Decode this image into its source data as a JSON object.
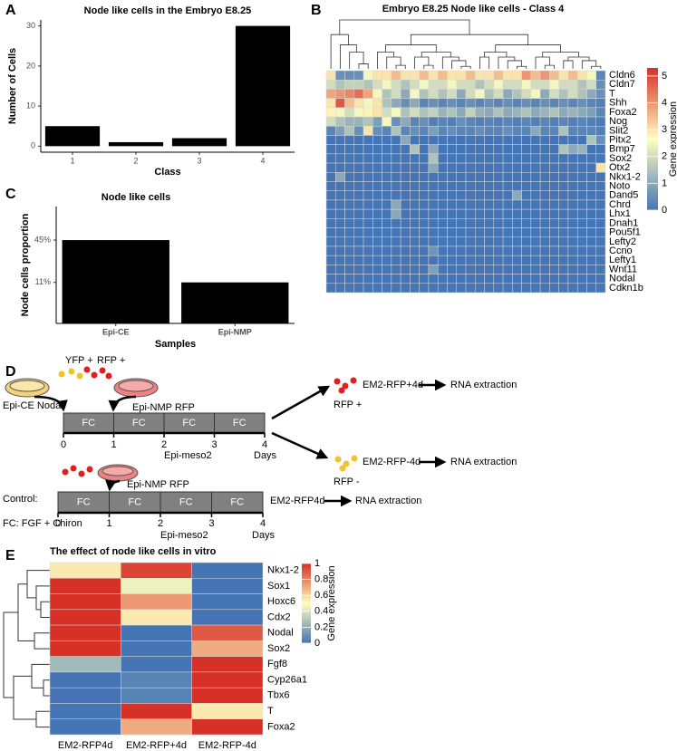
{
  "chart_data": [
    {
      "panel": "A",
      "type": "bar",
      "title": "Node like cells in the Embryo E8.25",
      "x_label": "Class",
      "y_label": "Number of Cells",
      "categories": [
        "1",
        "2",
        "3",
        "4"
      ],
      "values": [
        5,
        1,
        2,
        30
      ],
      "color": "#000000",
      "ylim": [
        -1.5,
        31.5
      ],
      "yticks": [
        0,
        10,
        20,
        30
      ]
    },
    {
      "panel": "B",
      "type": "heatmap",
      "title": "Embryo E8.25 Node like cells - Class 4",
      "colorbar_label": "Gene expression",
      "rows": [
        "Cldn6",
        "Cldn7",
        "T",
        "Shh",
        "Foxa2",
        "Nog",
        "Slit2",
        "Pitx2",
        "Bmp7",
        "Sox2",
        "Otx2",
        "Nkx1-2",
        "Noto",
        "Dand5",
        "Chrd",
        "Lhx1",
        "Dnah1",
        "Pou5f1",
        "Lefty2",
        "Ccno",
        "Lefty1",
        "Wnt11",
        "Nodal",
        "Cdkn1b"
      ],
      "values": [
        [
          3,
          0.5,
          0.5,
          0.5,
          2.5,
          3,
          3,
          3.5,
          3,
          3,
          3.5,
          3,
          3.5,
          3,
          3,
          3.5,
          3,
          3,
          3.5,
          3,
          3,
          4,
          3.5,
          4,
          3.5,
          3,
          3.5,
          3,
          2.5,
          0.3
        ],
        [
          2,
          1.5,
          1.8,
          1.8,
          1.5,
          2,
          2.5,
          2,
          1.5,
          2,
          2.5,
          2,
          2,
          2.5,
          2,
          2,
          1.5,
          2,
          2.5,
          2,
          2,
          2.5,
          2,
          2,
          2.5,
          2,
          2,
          1.5,
          2,
          0.5
        ],
        [
          3.8,
          4,
          4.2,
          4.5,
          3.8,
          2.5,
          1.5,
          2,
          1,
          2.5,
          1.5,
          2,
          1.5,
          2,
          1,
          2,
          2.5,
          1.5,
          2,
          1,
          1.5,
          2,
          2.5,
          1,
          2,
          1.5,
          2,
          1.5,
          1,
          0.5
        ],
        [
          3,
          4.8,
          3.5,
          3,
          2.5,
          3,
          1.5,
          1,
          0.5,
          1,
          0.3,
          0.5,
          0.3,
          0.5,
          0.3,
          0.5,
          0.3,
          0.5,
          0.3,
          0.5,
          0.3,
          0.5,
          0.3,
          0.5,
          0.3,
          0.5,
          0.3,
          0.5,
          0.3,
          0.2
        ],
        [
          2.8,
          2.5,
          2,
          2.5,
          2.8,
          3,
          2,
          2.5,
          1.5,
          2,
          1.5,
          1.8,
          1.2,
          1.5,
          1,
          1.8,
          1.2,
          1,
          1.5,
          1,
          1.2,
          1.5,
          1,
          1.2,
          1.5,
          1,
          1.2,
          1,
          0.8,
          0.3
        ],
        [
          2,
          1.5,
          1.2,
          1.2,
          1.5,
          0.8,
          2.5,
          0.5,
          1,
          0.3,
          0.5,
          0.2,
          0.3,
          0.2,
          0.5,
          0.3,
          0.2,
          0.3,
          0.2,
          0.3,
          0.2,
          0.3,
          0.2,
          0.3,
          0.2,
          0.3,
          0.2,
          0.3,
          0.2,
          0.1
        ],
        [
          0.3,
          0.8,
          1.5,
          0.5,
          3,
          0.5,
          0.3,
          1.5,
          0.3,
          0.5,
          0.3,
          0.8,
          0.3,
          0.5,
          0.3,
          0.3,
          0.5,
          0.3,
          0.3,
          0.5,
          0.3,
          0.3,
          1,
          0.3,
          0.3,
          1.5,
          0.3,
          0.3,
          0.3,
          0.2
        ],
        [
          0,
          0,
          0,
          0,
          0,
          0,
          0,
          0,
          1,
          0,
          0,
          0,
          0,
          0,
          0,
          0,
          0,
          0,
          0,
          0,
          0,
          0,
          0,
          0,
          0,
          0,
          0,
          0,
          1.5,
          0.5
        ],
        [
          0,
          0,
          0,
          0,
          0,
          0,
          0,
          0,
          0,
          1.5,
          0,
          1,
          0,
          0,
          0,
          0,
          0,
          0,
          0,
          0,
          0,
          0,
          0,
          0,
          0,
          1.5,
          1,
          1.2,
          0,
          0
        ],
        [
          0,
          0,
          0,
          0,
          0,
          0,
          0,
          0,
          0,
          0,
          0,
          1.5,
          0,
          0,
          0,
          0,
          0,
          0,
          0,
          0,
          0,
          0,
          0,
          0,
          0,
          0,
          0,
          0,
          0,
          0
        ],
        [
          0,
          0,
          0,
          0,
          0,
          0,
          0,
          0,
          0,
          0,
          0,
          1,
          0,
          0,
          0,
          0,
          0,
          0,
          0,
          0,
          0,
          0,
          0,
          0,
          0,
          0,
          0,
          0,
          0,
          3
        ],
        [
          0,
          1,
          0,
          0,
          0,
          0,
          0,
          0,
          0,
          0,
          0,
          0,
          0,
          0,
          0,
          0,
          0,
          0,
          0,
          0,
          0,
          0,
          0,
          0,
          0,
          0,
          0,
          0,
          0,
          0
        ],
        [
          0,
          0,
          0,
          0,
          0,
          0,
          0,
          0,
          0,
          0,
          0,
          0,
          0,
          0,
          0,
          0,
          0,
          0,
          0,
          0,
          0,
          0,
          0,
          0,
          0,
          0,
          0,
          0,
          0,
          0
        ],
        [
          0,
          0,
          0,
          0,
          0,
          0,
          0,
          0,
          0,
          0,
          0,
          0,
          0,
          0,
          0,
          0,
          0,
          0,
          0,
          0,
          1,
          0,
          0,
          0,
          0,
          0,
          0,
          0,
          0,
          0
        ],
        [
          0,
          0,
          0,
          0,
          0,
          0,
          0,
          1,
          0,
          0,
          0,
          0,
          0,
          0,
          0,
          0,
          0,
          0,
          0,
          0,
          0,
          0,
          0,
          0,
          0,
          0,
          0,
          0,
          0,
          0
        ],
        [
          0,
          0,
          0,
          0,
          0,
          0,
          0,
          1,
          0,
          0,
          0,
          0,
          0,
          0,
          0,
          0,
          0,
          0,
          0,
          0,
          0,
          0,
          0,
          0,
          0,
          0,
          0,
          0,
          0,
          0
        ],
        [
          0,
          0,
          0,
          0,
          0,
          0,
          0,
          0,
          0,
          0,
          0,
          0,
          0,
          0,
          0,
          0,
          0,
          0,
          0,
          0,
          0,
          0,
          0,
          0,
          0,
          0,
          0,
          0,
          0,
          0
        ],
        [
          0,
          0,
          0,
          0,
          0,
          0,
          0,
          0,
          0,
          0,
          0,
          0,
          0,
          0,
          0,
          0,
          0,
          0,
          0,
          0,
          0,
          0,
          0,
          0,
          0,
          0,
          0,
          0,
          0,
          0
        ],
        [
          0,
          0,
          0,
          0,
          0,
          0,
          0,
          0,
          0,
          0,
          0,
          0,
          0,
          0,
          0,
          0,
          0,
          0,
          0,
          0,
          0,
          0,
          0,
          0,
          0,
          0,
          0,
          0,
          0,
          0
        ],
        [
          0,
          0,
          0,
          0,
          0,
          0,
          0,
          0,
          0,
          0,
          0,
          0.6,
          0,
          0,
          0,
          0,
          0,
          0,
          0,
          0,
          0,
          0,
          0,
          0,
          0,
          0,
          0,
          0,
          0,
          0
        ],
        [
          0,
          0,
          0,
          0,
          0,
          0,
          0,
          0,
          0,
          0,
          0,
          0,
          0,
          0,
          0,
          0,
          0,
          0,
          0,
          0,
          0,
          0,
          0,
          0,
          0,
          0,
          0,
          0,
          0,
          0
        ],
        [
          0,
          0,
          0,
          0,
          0,
          0,
          0,
          0,
          0,
          0,
          0,
          0.8,
          0,
          0,
          0,
          0,
          0,
          0,
          0,
          0,
          0,
          0,
          0,
          0,
          0,
          0,
          0,
          0,
          0,
          0
        ],
        [
          0,
          0,
          0,
          0,
          0,
          0,
          0,
          0,
          0,
          0,
          0,
          0,
          0,
          0,
          0,
          0,
          0,
          0,
          0,
          0,
          0,
          0,
          0,
          0,
          0,
          0,
          0,
          0,
          0,
          0
        ],
        [
          0,
          0,
          0,
          0,
          0,
          0,
          0,
          0,
          0,
          0,
          0,
          0,
          0,
          0,
          0,
          0,
          0,
          0,
          0,
          0,
          0,
          0,
          0,
          0,
          0,
          0,
          0,
          0,
          0,
          0
        ]
      ],
      "zlim": [
        0,
        5.3
      ],
      "zticks": [
        0,
        1,
        2,
        3,
        4,
        5
      ],
      "colors": [
        "#4575b4",
        "#ffffbf",
        "#d73027"
      ]
    },
    {
      "panel": "C",
      "type": "bar",
      "title": "Node like cells",
      "x_label": "Samples",
      "y_label": "Node cells proportion",
      "categories": [
        "Epi-CE",
        "Epi-NMP"
      ],
      "values": [
        45,
        11
      ],
      "color": "#000000",
      "ylim": [
        -22,
        72
      ],
      "yticks": [
        {
          "value": 11,
          "label": "11%"
        },
        {
          "value": 45,
          "label": "45%"
        }
      ]
    },
    {
      "panel": "E",
      "type": "heatmap",
      "title": "The effect of node like cells in vitro",
      "colorbar_label": "Gene expression",
      "rows": [
        "Nkx1-2",
        "Sox1",
        "Hoxc6",
        "Cdx2",
        "Nodal",
        "Sox2",
        "Fgf8",
        "Cyp26a1",
        "Tbx6",
        "T",
        "Foxa2"
      ],
      "columns": [
        "EM2-RFP4d",
        "EM2-RFP+4d",
        "EM2-RFP-4d"
      ],
      "values": [
        [
          0.55,
          0.95,
          0
        ],
        [
          1,
          0.45,
          0
        ],
        [
          1,
          0.75,
          0
        ],
        [
          1,
          0.55,
          0
        ],
        [
          1,
          0,
          0.9
        ],
        [
          1,
          0,
          0.7
        ],
        [
          0.25,
          0,
          1
        ],
        [
          0,
          0.05,
          1
        ],
        [
          0,
          0.05,
          1
        ],
        [
          0,
          1,
          0.55
        ],
        [
          0,
          0.7,
          1
        ]
      ],
      "zlim": [
        0,
        1
      ],
      "zticks": [
        0,
        0.2,
        0.4,
        0.6,
        0.8,
        1
      ],
      "colors": [
        "#4575b4",
        "#ffffbf",
        "#d73027"
      ]
    }
  ],
  "diagram": {
    "panel": "D",
    "yfp": "YFP +",
    "rfp": "RFP +",
    "source_1": "Epi-CE Nodal",
    "source_2": "Epi-NMP RFP",
    "steps": [
      "FC",
      "FC",
      "FC",
      "FC"
    ],
    "days": [
      "0",
      "1",
      "2",
      "3",
      "4"
    ],
    "stage": "Epi-meso2",
    "days_label": "Days",
    "outputs": [
      {
        "sample": "EM2-RFP+4d",
        "result": "RNA extraction",
        "sort": "RFP +"
      },
      {
        "sample": "EM2-RFP-4d",
        "result": "RNA extraction",
        "sort": "RFP -"
      }
    ],
    "control": {
      "label": "Control:",
      "source": "Epi-NMP RFP",
      "steps": [
        "FC",
        "FC",
        "FC",
        "FC"
      ],
      "days": [
        "0",
        "1",
        "2",
        "3",
        "4"
      ],
      "stage": "Epi-meso2",
      "days_label": "Days",
      "sample": "EM2-RFP4d",
      "result": "RNA extraction"
    },
    "legend": "FC: FGF + Chiron"
  }
}
